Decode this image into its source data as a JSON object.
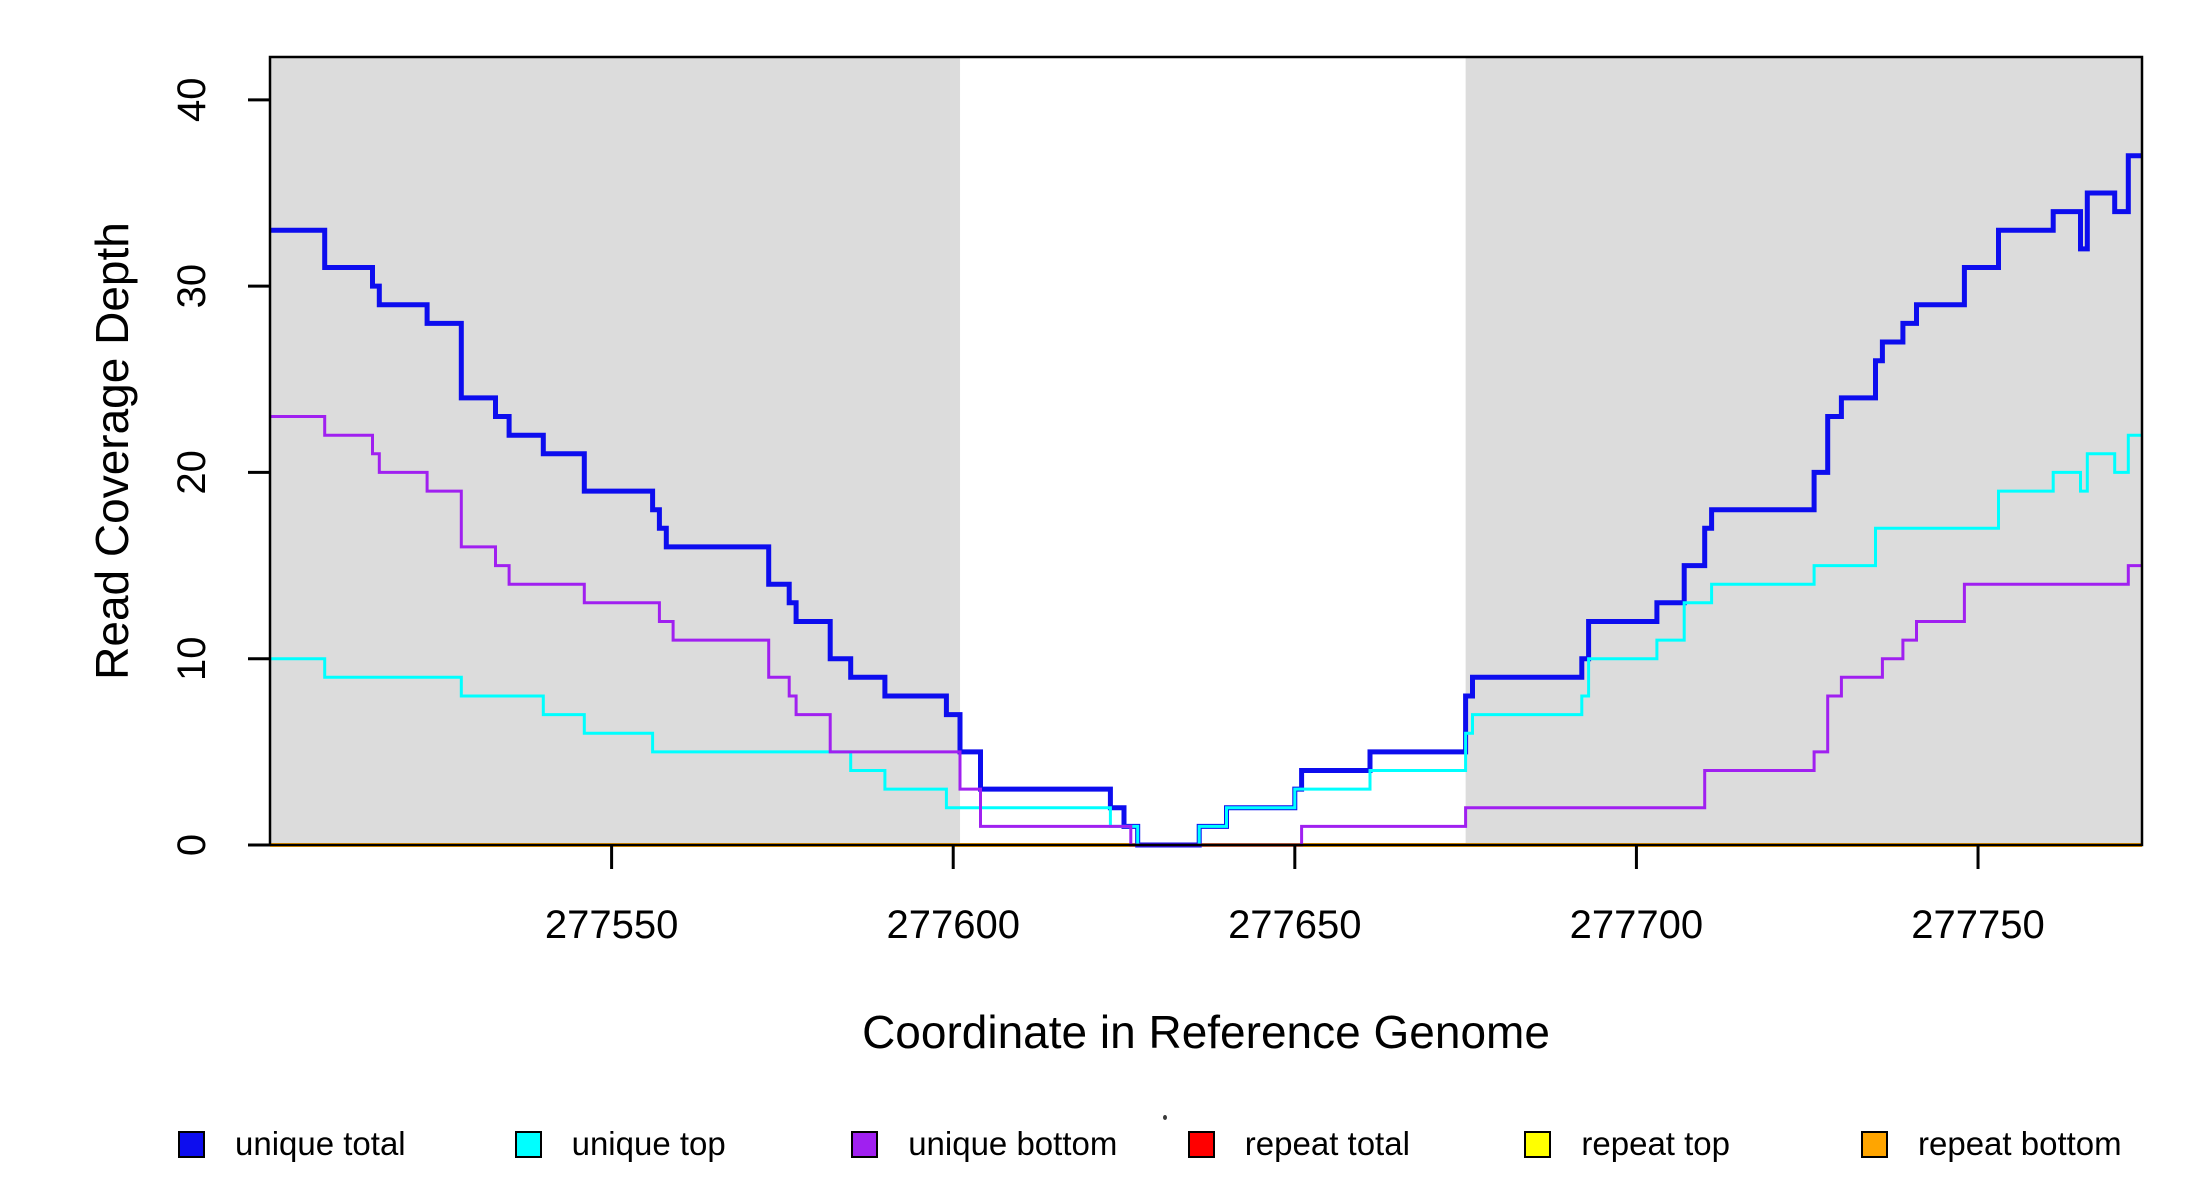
{
  "chart_data": {
    "type": "line",
    "subtype": "step",
    "title": "",
    "xlabel": "Coordinate in Reference Genome",
    "ylabel": "Read Coverage Depth",
    "xlim": [
      277500,
      277774
    ],
    "ylim": [
      0,
      42.3
    ],
    "x_ticks": [
      277550,
      277600,
      277650,
      277700,
      277750
    ],
    "y_ticks": [
      0,
      10,
      20,
      30,
      40
    ],
    "grid": false,
    "legend_position": "bottom",
    "background_color": "#ffffff",
    "shaded_region_color": "#dcdcdc",
    "shaded_regions": [
      {
        "name": "left-unique-region",
        "x0": 277500,
        "x1": 277601
      },
      {
        "name": "right-unique-region",
        "x0": 277675,
        "x1": 277774
      }
    ],
    "series": [
      {
        "name": "repeat total",
        "color": "#ff0000",
        "width": 4,
        "steps": [
          [
            277500,
            0
          ]
        ]
      },
      {
        "name": "repeat top",
        "color": "#ffff00",
        "width": 4,
        "steps": [
          [
            277500,
            0
          ]
        ]
      },
      {
        "name": "repeat bottom",
        "color": "#ffa500",
        "width": 4,
        "steps": [
          [
            277500,
            0
          ]
        ]
      },
      {
        "name": "unique total",
        "color": "#0d0dee",
        "width": 5,
        "steps": [
          [
            277500,
            33
          ],
          [
            277508,
            31
          ],
          [
            277515,
            30
          ],
          [
            277516,
            29
          ],
          [
            277523,
            28
          ],
          [
            277528,
            24
          ],
          [
            277533,
            23
          ],
          [
            277535,
            22
          ],
          [
            277540,
            21
          ],
          [
            277546,
            19
          ],
          [
            277556,
            18
          ],
          [
            277557,
            17
          ],
          [
            277558,
            16
          ],
          [
            277573,
            14
          ],
          [
            277576,
            13
          ],
          [
            277577,
            12
          ],
          [
            277582,
            10
          ],
          [
            277585,
            9
          ],
          [
            277590,
            8
          ],
          [
            277599,
            7
          ],
          [
            277601,
            5
          ],
          [
            277604,
            3
          ],
          [
            277623,
            2
          ],
          [
            277625,
            1
          ],
          [
            277627,
            0
          ],
          [
            277636,
            1
          ],
          [
            277640,
            2
          ],
          [
            277650,
            3
          ],
          [
            277651,
            4
          ],
          [
            277661,
            5
          ],
          [
            277675,
            8
          ],
          [
            277676,
            9
          ],
          [
            277692,
            10
          ],
          [
            277693,
            12
          ],
          [
            277703,
            13
          ],
          [
            277707,
            15
          ],
          [
            277710,
            17
          ],
          [
            277711,
            18
          ],
          [
            277726,
            20
          ],
          [
            277728,
            23
          ],
          [
            277730,
            24
          ],
          [
            277735,
            26
          ],
          [
            277736,
            27
          ],
          [
            277739,
            28
          ],
          [
            277741,
            29
          ],
          [
            277748,
            31
          ],
          [
            277753,
            33
          ],
          [
            277761,
            34
          ],
          [
            277765,
            32
          ],
          [
            277766,
            35
          ],
          [
            277770,
            34
          ],
          [
            277772,
            37
          ]
        ]
      },
      {
        "name": "unique top",
        "color": "#00ffff",
        "width": 3,
        "steps": [
          [
            277500,
            10
          ],
          [
            277508,
            9
          ],
          [
            277528,
            8
          ],
          [
            277540,
            7
          ],
          [
            277546,
            6
          ],
          [
            277556,
            5
          ],
          [
            277585,
            4
          ],
          [
            277590,
            3
          ],
          [
            277599,
            2
          ],
          [
            277623,
            1
          ],
          [
            277627,
            0
          ],
          [
            277636,
            1
          ],
          [
            277640,
            2
          ],
          [
            277650,
            3
          ],
          [
            277661,
            4
          ],
          [
            277675,
            6
          ],
          [
            277676,
            7
          ],
          [
            277692,
            8
          ],
          [
            277693,
            10
          ],
          [
            277703,
            11
          ],
          [
            277707,
            13
          ],
          [
            277711,
            14
          ],
          [
            277726,
            15
          ],
          [
            277735,
            17
          ],
          [
            277753,
            19
          ],
          [
            277761,
            20
          ],
          [
            277765,
            19
          ],
          [
            277766,
            21
          ],
          [
            277770,
            20
          ],
          [
            277772,
            22
          ]
        ]
      },
      {
        "name": "unique bottom",
        "color": "#a020f0",
        "width": 3,
        "steps": [
          [
            277500,
            23
          ],
          [
            277508,
            22
          ],
          [
            277515,
            21
          ],
          [
            277516,
            20
          ],
          [
            277523,
            19
          ],
          [
            277528,
            16
          ],
          [
            277533,
            15
          ],
          [
            277535,
            14
          ],
          [
            277546,
            13
          ],
          [
            277557,
            12
          ],
          [
            277559,
            11
          ],
          [
            277573,
            9
          ],
          [
            277576,
            8
          ],
          [
            277577,
            7
          ],
          [
            277582,
            5
          ],
          [
            277601,
            3
          ],
          [
            277604,
            1
          ],
          [
            277626,
            0
          ],
          [
            277651,
            1
          ],
          [
            277675,
            2
          ],
          [
            277710,
            4
          ],
          [
            277726,
            5
          ],
          [
            277728,
            8
          ],
          [
            277730,
            9
          ],
          [
            277736,
            10
          ],
          [
            277739,
            11
          ],
          [
            277741,
            12
          ],
          [
            277748,
            14
          ],
          [
            277772,
            15
          ]
        ]
      }
    ],
    "legend": [
      "unique total",
      "unique top",
      "unique bottom",
      "repeat total",
      "repeat top",
      "repeat bottom"
    ]
  }
}
